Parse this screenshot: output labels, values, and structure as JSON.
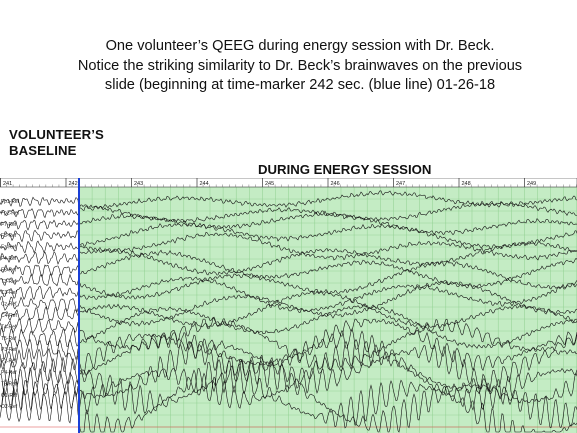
{
  "caption": {
    "line1": "One volunteer’s QEEG during energy session with Dr. Beck.",
    "line2": "Notice the striking similarity to Dr. Beck’s brainwaves on the previous",
    "line3": "slide (beginning at time-marker 242 sec. (blue line) 01-26-18"
  },
  "labels": {
    "baseline_line1": "VOLUNTEER’S",
    "baseline_line2": "BASELINE",
    "session": "DURING ENERGY SESSION"
  },
  "eeg": {
    "time_markers": [
      "241",
      "242",
      "243",
      "244",
      "245",
      "246",
      "247",
      "248",
      "249"
    ],
    "channels": [
      "Fp1-Ref",
      "Fp2-Ref",
      "F7-Ref",
      "F3-Ref",
      "Fz-Ref",
      "F4-Ref",
      "F8-Ref",
      "T3-Ref",
      "C3-Ref",
      "Cz-Ref",
      "C4-Ref",
      "T4-Ref",
      "T5-Ref",
      "P3-Ref",
      "Pz-Ref",
      "P4-Ref",
      "T6-Ref",
      "O1-Ref",
      "O2-Ref"
    ],
    "colors": {
      "session_fill": "#c4ecc4",
      "grid": "#8fcf8f",
      "marker_line": "#1a3fd6",
      "trace": "#151515"
    }
  }
}
